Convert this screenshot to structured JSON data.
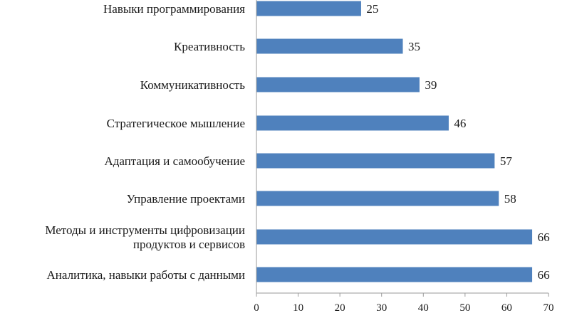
{
  "chart_data": {
    "type": "bar",
    "orientation": "horizontal",
    "categories": [
      [
        "Навыки программирования"
      ],
      [
        "Креативность"
      ],
      [
        "Коммуникативность"
      ],
      [
        "Стратегическое мышление"
      ],
      [
        "Адаптация и самообучение"
      ],
      [
        "Управление проектами"
      ],
      [
        "Методы и инструменты цифровизации",
        "продуктов и сервисов"
      ],
      [
        "Аналитика, навыки работы с данными"
      ]
    ],
    "values": [
      25,
      35,
      39,
      46,
      57,
      58,
      66,
      66
    ],
    "xlim": [
      0,
      70
    ],
    "xticks": [
      0,
      10,
      20,
      30,
      40,
      50,
      60,
      70
    ],
    "title": "",
    "xlabel": "",
    "ylabel": "",
    "grid": false,
    "legend": "none",
    "bar_color": "#4f81bd",
    "data_labels": true
  }
}
